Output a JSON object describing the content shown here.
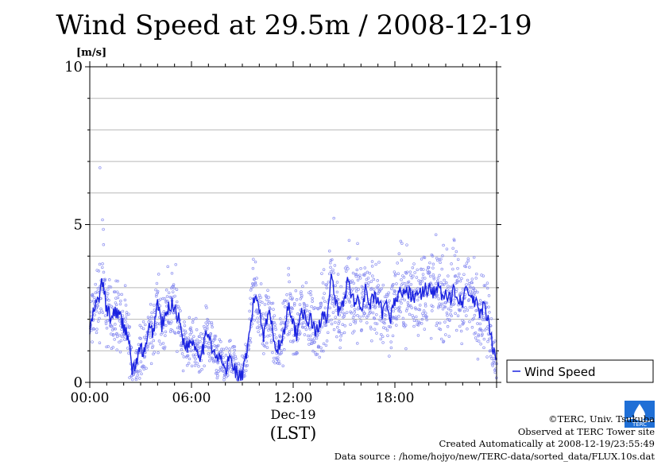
{
  "title": "Wind Speed at 29.5m / 2008-12-19",
  "chart_data": {
    "type": "line+scatter",
    "title": "Wind Speed at 29.5m / 2008-12-19",
    "ylabel": "[m/s]",
    "ylim": [
      0,
      10
    ],
    "yticks": [
      0,
      5,
      10
    ],
    "xlim": [
      0,
      24
    ],
    "xticks": [
      {
        "v": 0,
        "label": "00:00"
      },
      {
        "v": 6,
        "label": "06:00"
      },
      {
        "v": 12,
        "label": "12:00"
      },
      {
        "v": 18,
        "label": "18:00"
      }
    ],
    "xsublabel": "Dec-19",
    "xunit": "(LST)",
    "grid": true,
    "legend": {
      "position": "right",
      "entries": [
        "Wind Speed"
      ]
    },
    "series": [
      {
        "name": "Wind Speed",
        "style": "line",
        "x": [
          0.0,
          0.25,
          0.5,
          0.75,
          1.0,
          1.25,
          1.5,
          1.75,
          2.0,
          2.25,
          2.5,
          2.75,
          3.0,
          3.25,
          3.5,
          3.75,
          4.0,
          4.25,
          4.5,
          4.75,
          5.0,
          5.25,
          5.5,
          5.75,
          6.0,
          6.25,
          6.5,
          6.75,
          7.0,
          7.25,
          7.5,
          7.75,
          8.0,
          8.25,
          8.5,
          8.75,
          9.0,
          9.25,
          9.5,
          9.75,
          10.0,
          10.25,
          10.5,
          10.75,
          11.0,
          11.25,
          11.5,
          11.75,
          12.0,
          12.25,
          12.5,
          12.75,
          13.0,
          13.25,
          13.5,
          13.75,
          14.0,
          14.25,
          14.5,
          14.75,
          15.0,
          15.25,
          15.5,
          15.75,
          16.0,
          16.25,
          16.5,
          16.75,
          17.0,
          17.25,
          17.5,
          17.75,
          18.0,
          18.25,
          18.5,
          18.75,
          19.0,
          19.25,
          19.5,
          19.75,
          20.0,
          20.25,
          20.5,
          20.75,
          21.0,
          21.25,
          21.5,
          21.75,
          22.0,
          22.25,
          22.5,
          22.75,
          23.0,
          23.25,
          23.5,
          23.75,
          24.0
        ],
        "y": [
          1.6,
          2.3,
          2.6,
          3.2,
          2.3,
          2.0,
          2.3,
          2.1,
          1.8,
          1.5,
          0.4,
          0.6,
          1.1,
          0.9,
          1.7,
          1.6,
          2.6,
          1.8,
          2.1,
          2.5,
          2.4,
          2.0,
          1.4,
          1.1,
          1.4,
          1.1,
          0.9,
          1.2,
          1.7,
          1.0,
          0.7,
          0.8,
          0.3,
          0.8,
          0.5,
          0.2,
          0.2,
          0.8,
          1.9,
          2.8,
          2.4,
          1.5,
          2.2,
          1.9,
          1.0,
          1.2,
          1.7,
          2.6,
          1.8,
          1.5,
          2.5,
          1.8,
          2.1,
          1.6,
          1.7,
          2.3,
          2.0,
          3.3,
          2.5,
          2.2,
          2.6,
          3.3,
          2.6,
          2.7,
          2.3,
          2.9,
          2.4,
          2.7,
          2.5,
          2.2,
          2.4,
          2.1,
          2.6,
          2.8,
          2.9,
          2.8,
          2.8,
          2.7,
          2.8,
          2.9,
          3.0,
          2.9,
          3.0,
          2.8,
          2.7,
          2.6,
          3.0,
          2.7,
          2.6,
          2.9,
          2.7,
          2.5,
          2.2,
          2.4,
          1.9,
          1.2,
          0.6
        ]
      },
      {
        "name": "Wind Speed (10 s samples)",
        "style": "scatter",
        "note": "dense 10-second samples scattered around the line, range about 0 to 6.8"
      }
    ]
  },
  "credits": {
    "copyright": "©TERC, Univ. Tsukuba",
    "site": "Observed at TERC Tower site",
    "created": "Created Automatically at 2008-12-19/23:55:49",
    "source": "Data source : /home/hojyo/new/TERC-data/sorted_data/FLUX.10s.dat"
  },
  "logo": {
    "text": "TERC",
    "color": "#1f6fd6"
  }
}
